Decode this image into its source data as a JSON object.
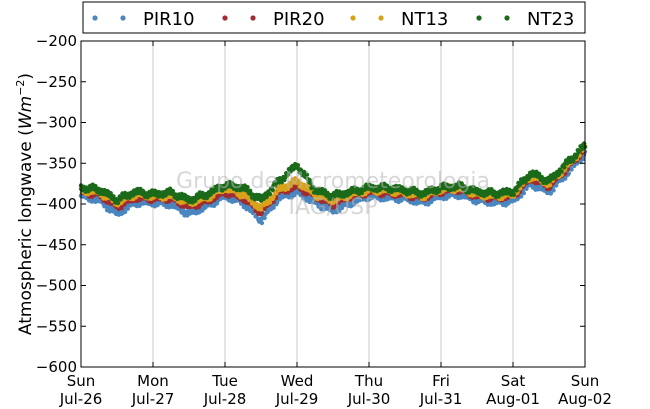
{
  "chart_data": {
    "type": "scatter",
    "ylabel": "Atmospheric longwave (Wm⁻²)",
    "ylabel_main": "Atmospheric longwave",
    "ylabel_unit_w": "W",
    "ylabel_unit_m": "m",
    "ylabel_unit_exp": "−2",
    "watermark_line1": "Grupo de Micrometeorologia",
    "watermark_line2": "IAG/USP",
    "ylim": [
      -600,
      -200
    ],
    "yticks": [
      -200,
      -250,
      -300,
      -350,
      -400,
      -450,
      -500,
      -550,
      -600
    ],
    "ytick_labels": [
      "−200",
      "−250",
      "−300",
      "−350",
      "−400",
      "−450",
      "−500",
      "−550",
      "−600"
    ],
    "xlim_days": [
      0,
      7
    ],
    "xticks": [
      {
        "day": "Sun",
        "date": "Jul-26"
      },
      {
        "day": "Mon",
        "date": "Jul-27"
      },
      {
        "day": "Tue",
        "date": "Jul-28"
      },
      {
        "day": "Wed",
        "date": "Jul-29"
      },
      {
        "day": "Thu",
        "date": "Jul-30"
      },
      {
        "day": "Fri",
        "date": "Jul-31"
      },
      {
        "day": "Sat",
        "date": "Aug-01"
      },
      {
        "day": "Sun",
        "date": "Aug-02"
      }
    ],
    "grid": "vertical",
    "legend_placement": "top",
    "series": [
      {
        "name": "PIR10",
        "color": "#4a86c0",
        "x": [
          0.0,
          0.25,
          0.5,
          0.75,
          1.0,
          1.25,
          1.5,
          1.75,
          2.0,
          2.25,
          2.5,
          2.75,
          3.0,
          3.25,
          3.5,
          3.75,
          4.0,
          4.25,
          4.5,
          4.75,
          5.0,
          5.25,
          5.5,
          5.75,
          6.0,
          6.25,
          6.5,
          6.75,
          7.0
        ],
        "y": [
          -390,
          -395,
          -412,
          -398,
          -398,
          -400,
          -412,
          -402,
          -390,
          -398,
          -420,
          -392,
          -385,
          -398,
          -408,
          -398,
          -390,
          -392,
          -393,
          -398,
          -390,
          -388,
          -395,
          -398,
          -396,
          -375,
          -385,
          -362,
          -338
        ]
      },
      {
        "name": "PIR20",
        "color": "#a02b32",
        "x": [
          0.0,
          0.25,
          0.5,
          0.75,
          1.0,
          1.25,
          1.5,
          1.75,
          2.0,
          2.25,
          2.5,
          2.75,
          3.0,
          3.25,
          3.5,
          3.75,
          4.0,
          4.25,
          4.5,
          4.75,
          5.0,
          5.25,
          5.5,
          5.75,
          6.0,
          6.25,
          6.5,
          6.75,
          7.0
        ],
        "y": [
          -385,
          -388,
          -403,
          -392,
          -393,
          -393,
          -403,
          -396,
          -385,
          -392,
          -410,
          -385,
          -378,
          -390,
          -400,
          -390,
          -385,
          -386,
          -388,
          -392,
          -384,
          -382,
          -390,
          -392,
          -390,
          -368,
          -378,
          -356,
          -332
        ]
      },
      {
        "name": "NT13",
        "color": "#d9a21b",
        "x": [
          0.0,
          0.25,
          0.5,
          0.75,
          1.0,
          1.25,
          1.5,
          1.75,
          2.0,
          2.25,
          2.5,
          2.75,
          3.0,
          3.25,
          3.5,
          3.75,
          4.0,
          4.25,
          4.5,
          4.75,
          5.0,
          5.25,
          5.5,
          5.75,
          6.0,
          6.25,
          6.5,
          6.75,
          7.0
        ],
        "y": [
          -383,
          -385,
          -398,
          -388,
          -390,
          -390,
          -398,
          -392,
          -380,
          -388,
          -405,
          -382,
          -372,
          -388,
          -395,
          -388,
          -383,
          -383,
          -386,
          -390,
          -382,
          -380,
          -388,
          -390,
          -388,
          -365,
          -375,
          -353,
          -330
        ]
      },
      {
        "name": "NT23",
        "color": "#1a6a1a",
        "x": [
          0.0,
          0.25,
          0.5,
          0.75,
          1.0,
          1.25,
          1.5,
          1.75,
          2.0,
          2.25,
          2.5,
          2.75,
          3.0,
          3.25,
          3.5,
          3.75,
          4.0,
          4.25,
          4.5,
          4.75,
          5.0,
          5.25,
          5.5,
          5.75,
          6.0,
          6.25,
          6.5,
          6.75,
          7.0
        ],
        "y": [
          -380,
          -382,
          -395,
          -385,
          -388,
          -386,
          -395,
          -388,
          -377,
          -380,
          -395,
          -372,
          -352,
          -383,
          -390,
          -385,
          -380,
          -380,
          -383,
          -387,
          -380,
          -378,
          -385,
          -387,
          -385,
          -362,
          -372,
          -350,
          -328
        ]
      }
    ]
  }
}
